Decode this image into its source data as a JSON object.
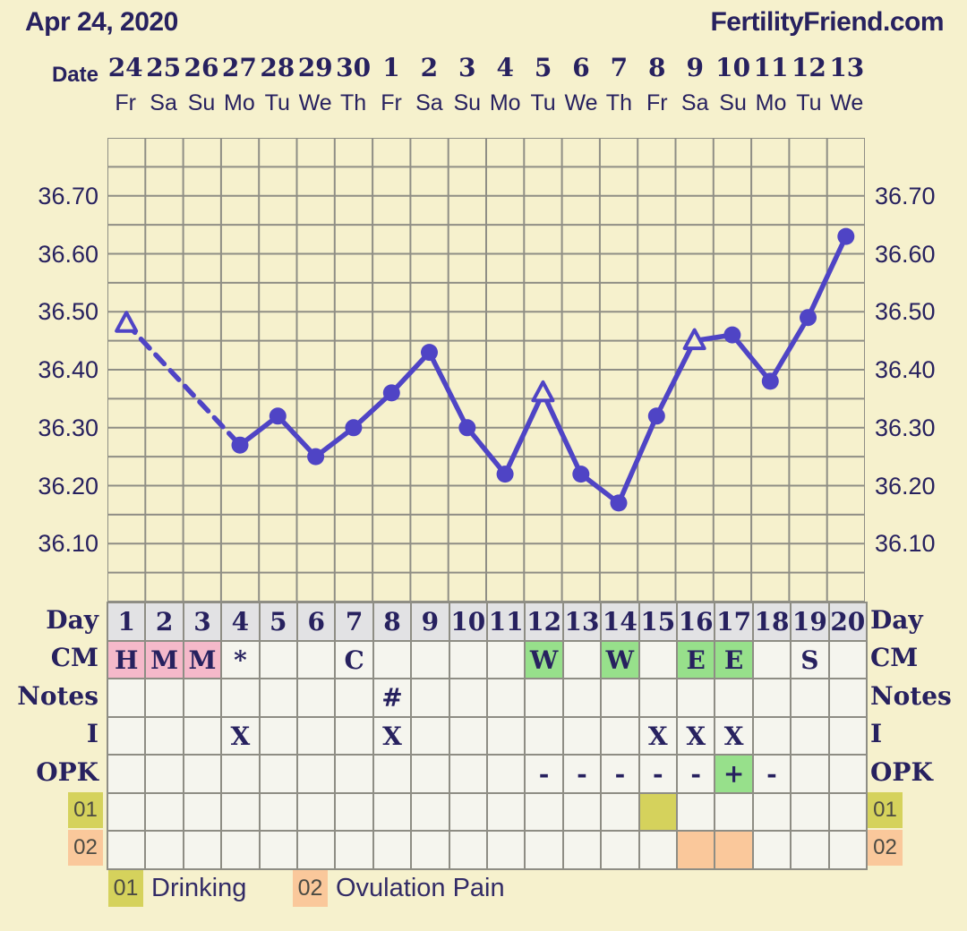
{
  "header": {
    "title": "Apr 24, 2020",
    "logo": "FertilityFriend.com"
  },
  "date_row": {
    "label": "Date",
    "dates": [
      "24",
      "25",
      "26",
      "27",
      "28",
      "29",
      "30",
      "1",
      "2",
      "3",
      "4",
      "5",
      "6",
      "7",
      "8",
      "9",
      "10",
      "11",
      "12",
      "13"
    ],
    "weekdays": [
      "Fr",
      "Sa",
      "Su",
      "Mo",
      "Tu",
      "We",
      "Th",
      "Fr",
      "Sa",
      "Su",
      "Mo",
      "Tu",
      "We",
      "Th",
      "Fr",
      "Sa",
      "Su",
      "Mo",
      "Tu",
      "We"
    ]
  },
  "chart_data": {
    "type": "line",
    "x_days": [
      1,
      2,
      3,
      4,
      5,
      6,
      7,
      8,
      9,
      10,
      11,
      12,
      13,
      14,
      15,
      16,
      17,
      18,
      19,
      20
    ],
    "series": [
      {
        "name": "basal-body-temperature-c",
        "values": [
          36.48,
          null,
          null,
          36.27,
          36.32,
          36.25,
          36.3,
          36.36,
          36.43,
          36.3,
          36.22,
          36.36,
          36.22,
          36.17,
          36.32,
          36.45,
          36.46,
          36.38,
          36.49,
          36.63
        ]
      }
    ],
    "open_triangle_marker_days": [
      1,
      12,
      16
    ],
    "y_ticks": [
      "36.70",
      "36.60",
      "36.50",
      "36.40",
      "36.30",
      "36.20",
      "36.10"
    ],
    "ylim": [
      36.0,
      36.8
    ],
    "grid": true,
    "legend_position": "none"
  },
  "table": {
    "rows": [
      {
        "key": "day",
        "label": "Day",
        "cells": [
          {
            "t": "1",
            "bg": "header"
          },
          {
            "t": "2",
            "bg": "header"
          },
          {
            "t": "3",
            "bg": "header"
          },
          {
            "t": "4",
            "bg": "header"
          },
          {
            "t": "5",
            "bg": "header"
          },
          {
            "t": "6",
            "bg": "header"
          },
          {
            "t": "7",
            "bg": "header"
          },
          {
            "t": "8",
            "bg": "header"
          },
          {
            "t": "9",
            "bg": "header"
          },
          {
            "t": "10",
            "bg": "header"
          },
          {
            "t": "11",
            "bg": "header"
          },
          {
            "t": "12",
            "bg": "header"
          },
          {
            "t": "13",
            "bg": "header"
          },
          {
            "t": "14",
            "bg": "header"
          },
          {
            "t": "15",
            "bg": "header"
          },
          {
            "t": "16",
            "bg": "header"
          },
          {
            "t": "17",
            "bg": "header"
          },
          {
            "t": "18",
            "bg": "header"
          },
          {
            "t": "19",
            "bg": "header"
          },
          {
            "t": "20",
            "bg": "header"
          }
        ]
      },
      {
        "key": "cm",
        "label": "CM",
        "cells": [
          {
            "t": "H",
            "bg": "pink"
          },
          {
            "t": "M",
            "bg": "pink"
          },
          {
            "t": "M",
            "bg": "pink"
          },
          {
            "t": "*"
          },
          {},
          {},
          {
            "t": "C"
          },
          {},
          {},
          {},
          {},
          {
            "t": "W",
            "bg": "green"
          },
          {},
          {
            "t": "W",
            "bg": "green"
          },
          {},
          {
            "t": "E",
            "bg": "green"
          },
          {
            "t": "E",
            "bg": "green"
          },
          {},
          {
            "t": "S"
          },
          {}
        ]
      },
      {
        "key": "notes",
        "label": "Notes",
        "cells": [
          {},
          {},
          {},
          {},
          {},
          {},
          {},
          {
            "t": "#"
          },
          {},
          {},
          {},
          {},
          {},
          {},
          {},
          {},
          {},
          {},
          {},
          {}
        ]
      },
      {
        "key": "intercourse",
        "label": "I",
        "cells": [
          {},
          {},
          {},
          {
            "t": "X"
          },
          {},
          {},
          {},
          {
            "t": "X"
          },
          {},
          {},
          {},
          {},
          {},
          {},
          {
            "t": "X"
          },
          {
            "t": "X"
          },
          {
            "t": "X"
          },
          {},
          {},
          {}
        ]
      },
      {
        "key": "opk",
        "label": "OPK",
        "cells": [
          {},
          {},
          {},
          {},
          {},
          {},
          {},
          {},
          {},
          {},
          {},
          {
            "t": "-"
          },
          {
            "t": "-"
          },
          {
            "t": "-"
          },
          {
            "t": "-"
          },
          {
            "t": "-"
          },
          {
            "t": "+",
            "bg": "green"
          },
          {
            "t": "-"
          },
          {},
          {}
        ]
      },
      {
        "key": "custom-01",
        "label": "01",
        "label_bg": "olive",
        "cells": [
          {},
          {},
          {},
          {},
          {},
          {},
          {},
          {},
          {},
          {},
          {},
          {},
          {},
          {},
          {
            "bg": "olive"
          },
          {},
          {},
          {},
          {},
          {}
        ]
      },
      {
        "key": "custom-02",
        "label": "02",
        "label_bg": "peach",
        "cells": [
          {},
          {},
          {},
          {},
          {},
          {},
          {},
          {},
          {},
          {},
          {},
          {},
          {},
          {},
          {},
          {
            "bg": "peach"
          },
          {
            "bg": "peach"
          },
          {},
          {},
          {}
        ]
      }
    ]
  },
  "legend": {
    "items": [
      {
        "code": "01",
        "label": "Drinking",
        "bg": "olive"
      },
      {
        "code": "02",
        "label": "Ovulation Pain",
        "bg": "peach"
      }
    ]
  },
  "colors": {
    "background": "#f6f1cd",
    "navy_text": "#27215f",
    "grid_line": "#8f8e85",
    "plot_line": "#4f44c5",
    "cell_bg": "#f5f5ee",
    "header": "#e2e2e4",
    "pink": "#f5b9ca",
    "green": "#97e08b",
    "olive": "#d5d25c",
    "peach": "#fac89b"
  }
}
